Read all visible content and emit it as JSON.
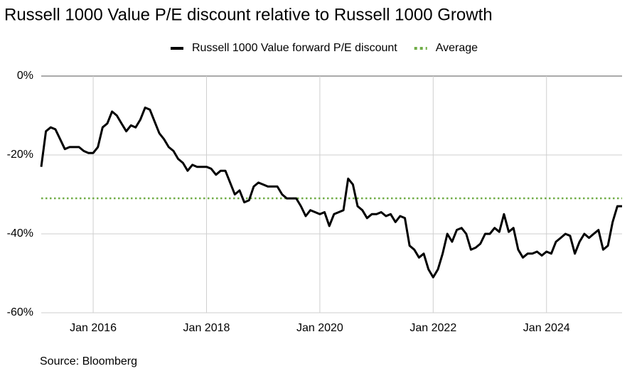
{
  "chart_data": {
    "type": "line",
    "title": "Russell 1000 Value P/E discount relative to Russell 1000 Growth",
    "source": "Source: Bloomberg",
    "x": [
      "2015-02",
      "2015-03",
      "2015-04",
      "2015-05",
      "2015-06",
      "2015-07",
      "2015-08",
      "2015-09",
      "2015-10",
      "2015-11",
      "2015-12",
      "2016-01",
      "2016-02",
      "2016-03",
      "2016-04",
      "2016-05",
      "2016-06",
      "2016-07",
      "2016-08",
      "2016-09",
      "2016-10",
      "2016-11",
      "2016-12",
      "2017-01",
      "2017-02",
      "2017-03",
      "2017-04",
      "2017-05",
      "2017-06",
      "2017-07",
      "2017-08",
      "2017-09",
      "2017-10",
      "2017-11",
      "2017-12",
      "2018-01",
      "2018-02",
      "2018-03",
      "2018-04",
      "2018-05",
      "2018-06",
      "2018-07",
      "2018-08",
      "2018-09",
      "2018-10",
      "2018-11",
      "2018-12",
      "2019-01",
      "2019-02",
      "2019-03",
      "2019-04",
      "2019-05",
      "2019-06",
      "2019-07",
      "2019-08",
      "2019-09",
      "2019-10",
      "2019-11",
      "2019-12",
      "2020-01",
      "2020-02",
      "2020-03",
      "2020-04",
      "2020-05",
      "2020-06",
      "2020-07",
      "2020-08",
      "2020-09",
      "2020-10",
      "2020-11",
      "2020-12",
      "2021-01",
      "2021-02",
      "2021-03",
      "2021-04",
      "2021-05",
      "2021-06",
      "2021-07",
      "2021-08",
      "2021-09",
      "2021-10",
      "2021-11",
      "2021-12",
      "2022-01",
      "2022-02",
      "2022-03",
      "2022-04",
      "2022-05",
      "2022-06",
      "2022-07",
      "2022-08",
      "2022-09",
      "2022-10",
      "2022-11",
      "2022-12",
      "2023-01",
      "2023-02",
      "2023-03",
      "2023-04",
      "2023-05",
      "2023-06",
      "2023-07",
      "2023-08",
      "2023-09",
      "2023-10",
      "2023-11",
      "2023-12",
      "2024-01",
      "2024-02",
      "2024-03",
      "2024-04",
      "2024-05",
      "2024-06",
      "2024-07",
      "2024-08",
      "2024-09",
      "2024-10",
      "2024-11",
      "2024-12",
      "2025-01",
      "2025-02",
      "2025-03",
      "2025-04",
      "2025-05"
    ],
    "series": [
      {
        "name": "Russell 1000 Value forward P/E discount",
        "color": "#000000",
        "values": [
          -23,
          -14,
          -13,
          -13.5,
          -16,
          -18.5,
          -18,
          -18,
          -18,
          -19,
          -19.5,
          -19.5,
          -18,
          -13,
          -12,
          -9,
          -10,
          -12,
          -14,
          -12.5,
          -13,
          -11,
          -8,
          -8.5,
          -11.5,
          -14.5,
          -16,
          -18,
          -19,
          -21,
          -22,
          -24,
          -22.5,
          -23,
          -23,
          -23,
          -23.5,
          -25,
          -24,
          -24,
          -27,
          -30,
          -29,
          -32,
          -31.5,
          -28,
          -27,
          -27.5,
          -28,
          -28,
          -28,
          -30,
          -31,
          -31,
          -31,
          -33,
          -35.5,
          -34,
          -34.5,
          -35,
          -34.5,
          -38,
          -35,
          -34.5,
          -34,
          -26,
          -27.5,
          -33,
          -34,
          -36,
          -35,
          -35,
          -34.5,
          -35.5,
          -35,
          -37,
          -35.5,
          -36,
          -43,
          -44,
          -46,
          -45,
          -49,
          -51,
          -49,
          -45,
          -40,
          -42,
          -39,
          -38.5,
          -40,
          -44,
          -43.5,
          -42.5,
          -40,
          -40,
          -38.5,
          -39.5,
          -35,
          -39.5,
          -38.5,
          -44,
          -46,
          -45,
          -45,
          -44.5,
          -45.5,
          -44.5,
          -45,
          -42,
          -41,
          -40,
          -40.5,
          -45,
          -42,
          -40,
          -41,
          -40,
          -39,
          -44,
          -43,
          -37,
          -33,
          -33
        ]
      }
    ],
    "reference_lines": [
      {
        "name": "Average",
        "value": -31,
        "color": "#70ad47"
      }
    ],
    "xlim": [
      "2015-02",
      "2025-05"
    ],
    "xticks": [
      {
        "value": "2016-01",
        "label": "Jan 2016"
      },
      {
        "value": "2018-01",
        "label": "Jan 2018"
      },
      {
        "value": "2020-01",
        "label": "Jan 2020"
      },
      {
        "value": "2022-01",
        "label": "Jan 2022"
      },
      {
        "value": "2024-01",
        "label": "Jan 2024"
      }
    ],
    "ylim": [
      -60,
      0
    ],
    "yticks": [
      {
        "value": 0,
        "label": "0%"
      },
      {
        "value": -20,
        "label": "-20%"
      },
      {
        "value": -40,
        "label": "-40%"
      },
      {
        "value": -60,
        "label": "-60%"
      }
    ],
    "grid": true
  }
}
